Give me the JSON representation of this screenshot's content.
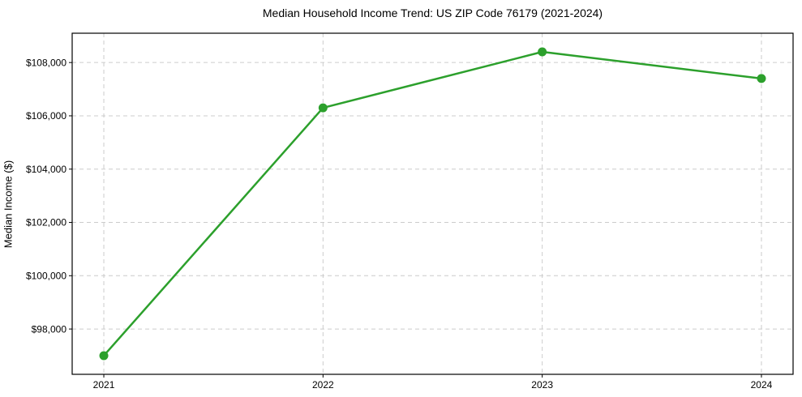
{
  "figure": {
    "background": "#ffffff",
    "axis_color": "#000000",
    "text_color": "#000000"
  },
  "chart_data": {
    "type": "line",
    "title": "Median Household Income Trend: US ZIP Code 76179 (2021-2024)",
    "xlabel": "",
    "ylabel": "Median Income ($)",
    "categories": [
      2021,
      2022,
      2023,
      2024
    ],
    "xtick_labels": [
      "2021",
      "2022",
      "2023",
      "2024"
    ],
    "series": [
      {
        "name": "median-household-income",
        "values": [
          97000,
          106300,
          108400,
          107400
        ],
        "color": "#2ca02c",
        "marker": "circle",
        "line_width": 2.5,
        "marker_radius": 5.5
      }
    ],
    "yticks": [
      98000,
      100000,
      102000,
      104000,
      106000,
      108000
    ],
    "ytick_labels": [
      "$98,000",
      "$100,000",
      "$102,000",
      "$104,000",
      "$106,000",
      "$108,000"
    ],
    "ylim": [
      96300,
      109100
    ],
    "grid": true,
    "grid_style": "dashed",
    "grid_color": "#cccccc",
    "legend_position": "none"
  }
}
